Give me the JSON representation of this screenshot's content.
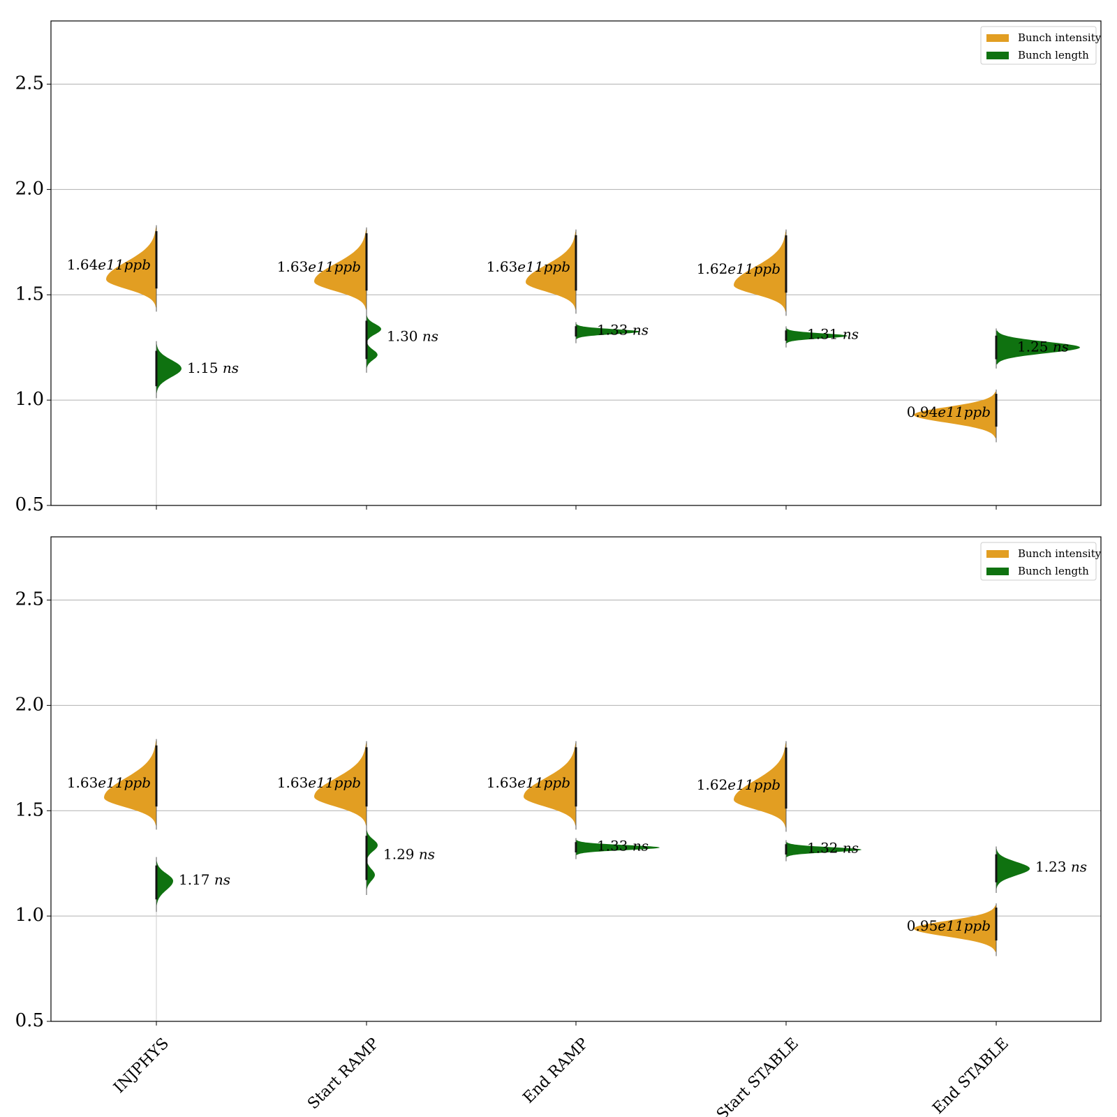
{
  "chart_data": [
    {
      "type": "violin",
      "ylim": [
        0.5,
        2.8
      ],
      "yticks": [
        "0.5",
        "1.0",
        "1.5",
        "2.0",
        "2.5"
      ],
      "grid": "horizontal",
      "legend_placement": "top-right",
      "categories": [
        "INJPHYS",
        "Start RAMP",
        "End RAMP",
        "Start STABLE",
        "End STABLE"
      ],
      "series": [
        {
          "name": "Bunch intensity",
          "color": "#e29e22",
          "side": "left",
          "unit": "e11ppb",
          "values": [
            1.64,
            1.63,
            1.63,
            1.62,
            0.94
          ]
        },
        {
          "name": "Bunch length",
          "color": "#0f7210",
          "side": "right",
          "unit": "ns",
          "values": [
            1.15,
            1.3,
            1.33,
            1.31,
            1.25
          ]
        }
      ],
      "annotations": [
        "1.64",
        "1.63",
        "1.63",
        "1.62",
        "0.94",
        "1.15",
        "1.30",
        "1.33",
        "1.31",
        "1.25"
      ]
    },
    {
      "type": "violin",
      "ylim": [
        0.5,
        2.8
      ],
      "yticks": [
        "0.5",
        "1.0",
        "1.5",
        "2.0",
        "2.5"
      ],
      "grid": "horizontal",
      "legend_placement": "top-right",
      "categories": [
        "INJPHYS",
        "Start RAMP",
        "End RAMP",
        "Start STABLE",
        "End STABLE"
      ],
      "series": [
        {
          "name": "Bunch intensity",
          "color": "#e29e22",
          "side": "left",
          "unit": "e11ppb",
          "values": [
            1.63,
            1.63,
            1.63,
            1.62,
            0.95
          ]
        },
        {
          "name": "Bunch length",
          "color": "#0f7210",
          "side": "right",
          "unit": "ns",
          "values": [
            1.17,
            1.29,
            1.33,
            1.32,
            1.23
          ]
        }
      ],
      "annotations": [
        "1.63",
        "1.63",
        "1.63",
        "1.62",
        "0.95",
        "1.17",
        "1.29",
        "1.33",
        "1.32",
        "1.23"
      ]
    }
  ]
}
